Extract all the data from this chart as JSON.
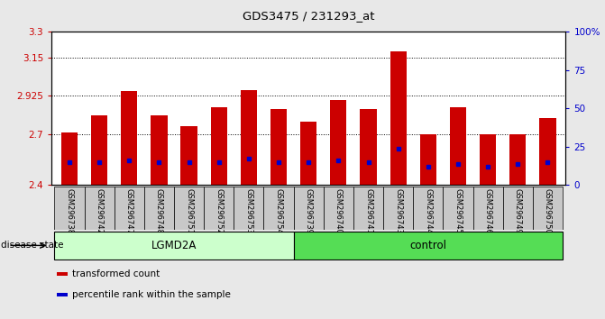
{
  "title": "GDS3475 / 231293_at",
  "samples": [
    "GSM296738",
    "GSM296742",
    "GSM296747",
    "GSM296748",
    "GSM296751",
    "GSM296752",
    "GSM296753",
    "GSM296754",
    "GSM296739",
    "GSM296740",
    "GSM296741",
    "GSM296743",
    "GSM296744",
    "GSM296745",
    "GSM296746",
    "GSM296749",
    "GSM296750"
  ],
  "bar_values": [
    2.71,
    2.81,
    2.955,
    2.81,
    2.745,
    2.855,
    2.96,
    2.845,
    2.775,
    2.9,
    2.845,
    3.185,
    2.7,
    2.855,
    2.7,
    2.7,
    2.795
  ],
  "percentile_values": [
    2.535,
    2.535,
    2.545,
    2.535,
    2.535,
    2.535,
    2.555,
    2.535,
    2.535,
    2.545,
    2.535,
    2.615,
    2.505,
    2.525,
    2.505,
    2.525,
    2.535
  ],
  "ymin": 2.4,
  "ymax": 3.3,
  "yticks": [
    2.4,
    2.7,
    2.925,
    3.15,
    3.3
  ],
  "ytick_labels": [
    "2.4",
    "2.7",
    "2.925",
    "3.15",
    "3.3"
  ],
  "dotted_lines": [
    2.7,
    2.925,
    3.15
  ],
  "right_yticks": [
    0,
    25,
    50,
    75,
    100
  ],
  "right_ytick_labels": [
    "0",
    "25",
    "50",
    "75",
    "100%"
  ],
  "bar_color": "#cc0000",
  "percentile_color": "#0000cc",
  "left_label_color": "#cc0000",
  "right_label_color": "#0000cc",
  "groups": [
    {
      "label": "LGMD2A",
      "start": 0,
      "end": 8,
      "color": "#ccffcc"
    },
    {
      "label": "control",
      "start": 8,
      "end": 17,
      "color": "#55dd55"
    }
  ],
  "disease_state_label": "disease state",
  "legend_items": [
    {
      "color": "#cc0000",
      "label": "transformed count"
    },
    {
      "color": "#0000cc",
      "label": "percentile rank within the sample"
    }
  ],
  "bar_width": 0.55,
  "background_color": "#e8e8e8",
  "plot_bg_color": "#ffffff",
  "axis_label_area_color": "#c8c8c8"
}
